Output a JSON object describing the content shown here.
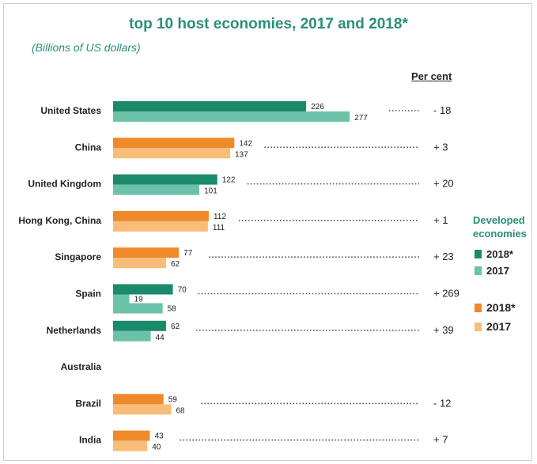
{
  "title": "top 10 host economies, 2017 and 2018*",
  "subtitle": "(Billions of US dollars)",
  "percent_header": "Per cent",
  "legend": {
    "group_title": "Developed economies",
    "developed_2018": "2018*",
    "developed_2017": "2017",
    "developing_2018": "2018*",
    "developing_2017": "2017"
  },
  "colors": {
    "developed_2018": "#1a8a6a",
    "developed_2017": "#6cc2a8",
    "developing_2018": "#f0892a",
    "developing_2017": "#f8bd78"
  },
  "chart_data": {
    "type": "bar",
    "orientation": "horizontal",
    "title": "top 10 host economies, 2017 and 2018*",
    "subtitle": "(Billions of US dollars)",
    "series": [
      {
        "name": "2018*",
        "values": [
          226,
          142,
          122,
          112,
          77,
          70,
          62,
          null,
          59,
          43
        ]
      },
      {
        "name": "2017",
        "values": [
          277,
          137,
          101,
          111,
          62,
          19,
          44,
          null,
          68,
          40
        ]
      }
    ],
    "categories": [
      "United States",
      "China",
      "United Kingdom",
      "Hong Kong, China",
      "Singapore",
      "Spain",
      "Netherlands",
      "Australia",
      "Brazil",
      "India"
    ],
    "group": [
      "developed",
      "developing",
      "developed",
      "developing",
      "developing",
      "developed",
      "developed",
      "developed",
      "developing",
      "developing"
    ],
    "rows": [
      {
        "label": "United States",
        "v2018": 226,
        "v2017": 277,
        "pct": "- 18",
        "group": "developed"
      },
      {
        "label": "China",
        "v2018": 142,
        "v2017": 137,
        "pct": "+ 3",
        "group": "developing"
      },
      {
        "label": "United Kingdom",
        "v2018": 122,
        "v2017": 101,
        "pct": "+ 20",
        "group": "developed"
      },
      {
        "label": "Hong Kong, China",
        "v2018": 112,
        "v2017": 111,
        "pct": "+ 1",
        "group": "developing"
      },
      {
        "label": "Singapore",
        "v2018": 77,
        "v2017": 62,
        "pct": "+ 23",
        "group": "developing"
      },
      {
        "label": "Spain",
        "v2018": 70,
        "v2017": 19,
        "v2017b": 58,
        "pct": "+ 269",
        "group": "developed"
      },
      {
        "label": "Netherlands",
        "v2018": 62,
        "v2017": 44,
        "pct": "+ 39",
        "group": "developed"
      },
      {
        "label": "Australia",
        "v2018": null,
        "v2017": null,
        "pct": "",
        "group": "developed"
      },
      {
        "label": "Brazil",
        "v2018": 59,
        "v2017": 68,
        "pct": "- 12",
        "group": "developing"
      },
      {
        "label": "India",
        "v2018": 43,
        "v2017": 40,
        "pct": "+ 7",
        "group": "developing"
      }
    ],
    "xlim": [
      0,
      300
    ],
    "grid": false
  }
}
